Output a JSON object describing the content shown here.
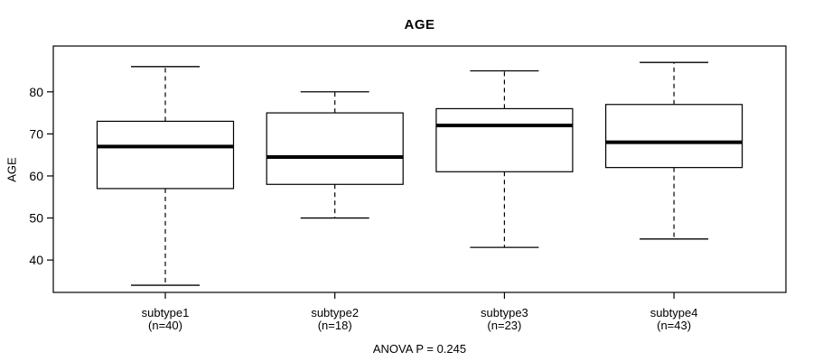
{
  "title": "AGE",
  "ylabel": "AGE",
  "annotation": "ANOVA P = 0.245",
  "chart_data": {
    "type": "boxplot",
    "title": "AGE",
    "xlabel": "",
    "ylabel": "AGE",
    "annotation": "ANOVA P = 0.245",
    "ylim": [
      32.3,
      90.9
    ],
    "yticks": [
      40,
      50,
      60,
      70,
      80
    ],
    "grid": false,
    "legend": "none",
    "categories": [
      {
        "label": "subtype1",
        "sublabel": "(n=40)",
        "n": 40,
        "whisker_low": 34,
        "q1": 57,
        "median": 67,
        "q3": 73,
        "whisker_high": 86
      },
      {
        "label": "subtype2",
        "sublabel": "(n=18)",
        "n": 18,
        "whisker_low": 50,
        "q1": 58,
        "median": 64.5,
        "q3": 75,
        "whisker_high": 80
      },
      {
        "label": "subtype3",
        "sublabel": "(n=23)",
        "n": 23,
        "whisker_low": 43,
        "q1": 61,
        "median": 72,
        "q3": 76,
        "whisker_high": 85
      },
      {
        "label": "subtype4",
        "sublabel": "(n=43)",
        "n": 43,
        "whisker_low": 45,
        "q1": 62,
        "median": 68,
        "q3": 77,
        "whisker_high": 87
      }
    ],
    "colors": {
      "line": "#000000",
      "box_fill": "#ffffff",
      "background": "#ffffff",
      "text": "#000000"
    }
  }
}
